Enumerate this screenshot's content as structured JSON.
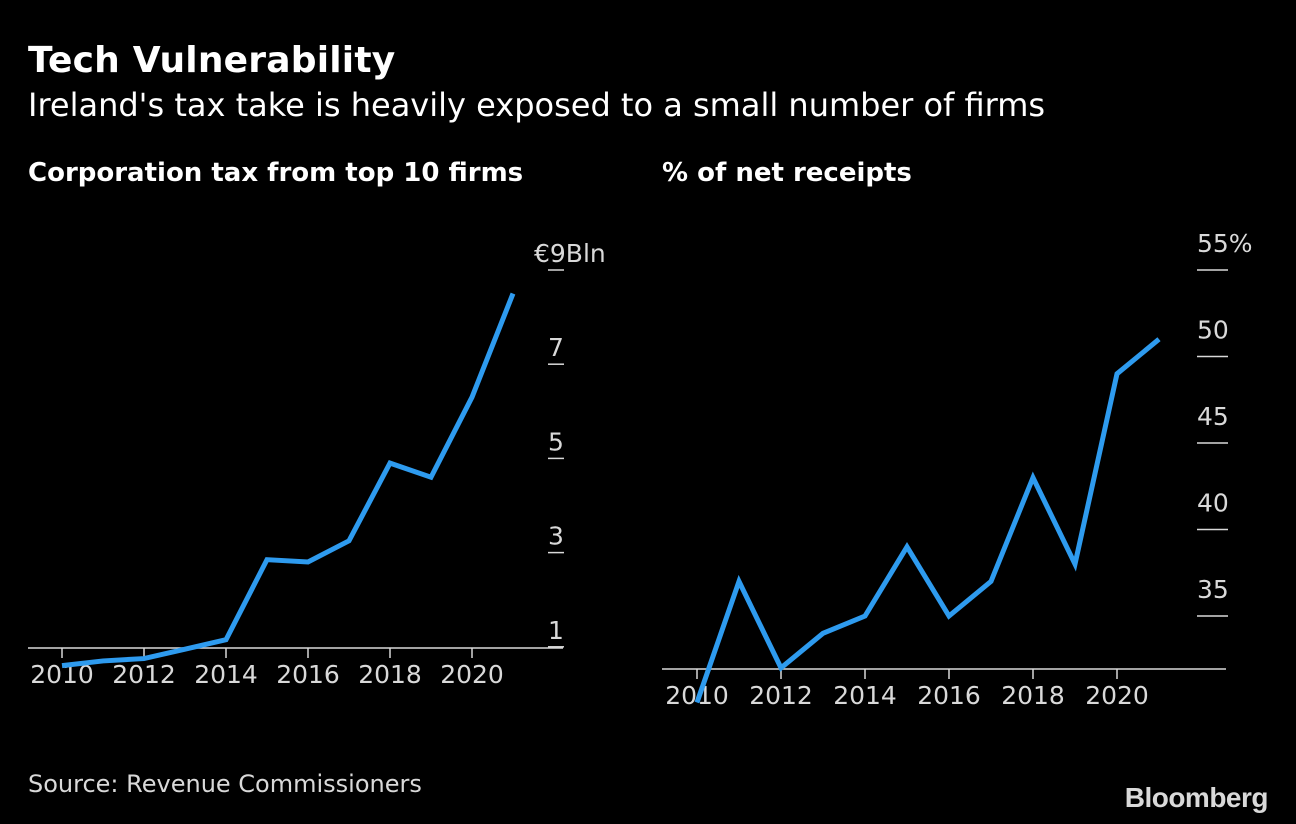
{
  "header": {
    "title": "Tech Vulnerability",
    "subtitle": "Ireland's tax take is heavily exposed to a small number of firms"
  },
  "footer": {
    "source": "Source: Revenue Commissioners",
    "brand": "Bloomberg"
  },
  "colors": {
    "line": "#2e9bef",
    "background": "#000000",
    "text": "#ffffff",
    "axis": "#d9d9d9"
  },
  "chart_data": [
    {
      "type": "line",
      "title": "Corporation tax from top 10 firms",
      "x": [
        2010,
        2011,
        2012,
        2013,
        2014,
        2015,
        2016,
        2017,
        2018,
        2019,
        2020,
        2021
      ],
      "series": [
        {
          "values": [
            0.6,
            0.7,
            0.75,
            0.95,
            1.15,
            2.85,
            2.8,
            3.25,
            4.9,
            4.6,
            6.3,
            8.5
          ]
        }
      ],
      "xticks": [
        "2010",
        "2012",
        "2014",
        "2016",
        "2018",
        "2020"
      ],
      "yticks": [
        "1",
        "3",
        "5",
        "7",
        "€9Bln"
      ],
      "ylim": [
        0,
        9
      ],
      "grid": false
    },
    {
      "type": "line",
      "title": "% of net receipts",
      "x": [
        2010,
        2011,
        2012,
        2013,
        2014,
        2015,
        2016,
        2017,
        2018,
        2019,
        2020,
        2021
      ],
      "series": [
        {
          "values": [
            30,
            37,
            32,
            34,
            35,
            39,
            35,
            37,
            43,
            38,
            49,
            51
          ]
        }
      ],
      "xticks": [
        "2010",
        "2012",
        "2014",
        "2016",
        "2018",
        "2020"
      ],
      "yticks": [
        "35",
        "40",
        "45",
        "50",
        "55%"
      ],
      "ylim": [
        30,
        55
      ],
      "grid": false
    }
  ]
}
